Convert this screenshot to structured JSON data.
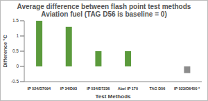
{
  "chart_data": {
    "type": "bar",
    "title": "Average difference between flash point test methods",
    "subtitle": "Aviation fuel (TAG D56 is baseline = 0)",
    "x_label": "Test Methods",
    "y_label": "Difference °C",
    "categories": [
      "IP 524/D7094",
      "IP 34/D93",
      "IP 534/D7236",
      "Abel IP 170",
      "TAG D56",
      "IP 523/D6450 *"
    ],
    "values": [
      1.5,
      1.3,
      0.5,
      0.5,
      0,
      -0.22
    ],
    "colors": [
      "#5b9a3c",
      "#5b9a3c",
      "#5b9a3c",
      "#5b9a3c",
      "#5b9a3c",
      "#8c8c8c"
    ],
    "ylim": [
      -0.5,
      1.5
    ],
    "yticks": [
      -0.5,
      0,
      0.5,
      1,
      1.5
    ],
    "grid": false
  }
}
